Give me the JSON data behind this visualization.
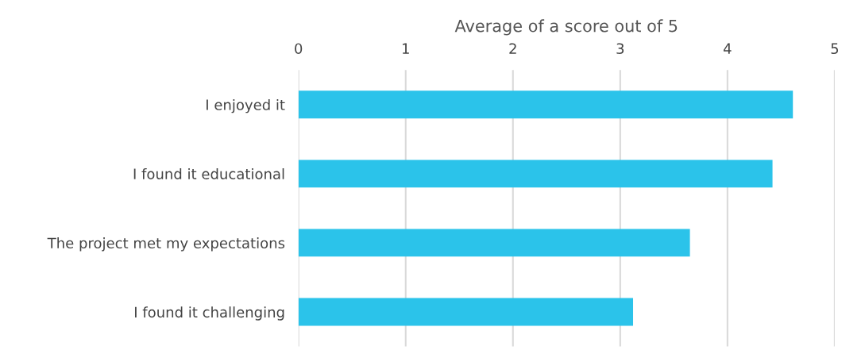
{
  "chart_data": {
    "type": "bar",
    "orientation": "horizontal",
    "xlabel": "Average of a score out of 5",
    "categories": [
      "I enjoyed it",
      "I found it educational",
      "The project met my expectations",
      "I found it challenging"
    ],
    "values": [
      4.61,
      4.42,
      3.65,
      3.12
    ],
    "color": "#2bc3ea",
    "xlim": [
      0,
      5
    ],
    "xticks": [
      0,
      1,
      2,
      3,
      4,
      5
    ],
    "grid": "x"
  }
}
